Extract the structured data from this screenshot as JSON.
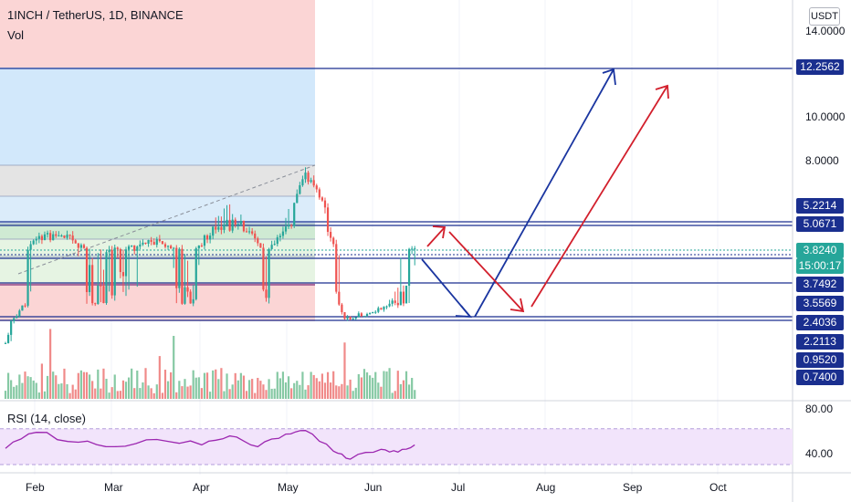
{
  "header": {
    "symbol": "1INCH / TetherUS, 1D, BINANCE",
    "volume_label": "Vol",
    "rsi_label": "RSI (14, close)",
    "currency_button": "USDT"
  },
  "price_ticks": [
    "14.0000",
    "10.0000",
    "8.0000"
  ],
  "price_tags_blue": [
    "12.2562",
    "5.2214",
    "5.0671",
    "3.7492",
    "3.5569",
    "2.4036",
    "2.2113",
    "0.9520",
    "0.7400"
  ],
  "current_price_tag": "3.8240",
  "countdown_tag": "15:00:17",
  "rsi_ticks": [
    "80.00",
    "40.00"
  ],
  "x_labels": [
    "Feb",
    "Mar",
    "Apr",
    "May",
    "Jun",
    "Jul",
    "Aug",
    "Sep",
    "Oct"
  ],
  "colors": {
    "bull": "#26a69a",
    "bear": "#ef5350",
    "level_line": "#1a2f8f",
    "arrow_blue": "#1a35a0",
    "arrow_red": "#d21f2c",
    "rsi_line": "#9c27b0",
    "rsi_band": "#f2e4fb"
  },
  "chart_data": [
    {
      "type": "candlestick",
      "title": "1INCH / TetherUS, 1D, BINANCE",
      "x_range": [
        "2021-01-25",
        "2021-10-18"
      ],
      "price_levels": [
        12.2562,
        5.2214,
        5.0671,
        3.7492,
        3.5569,
        2.4036,
        2.2113,
        0.952,
        0.74
      ],
      "current_price": 3.824,
      "close_path": [
        {
          "date": "2021-01-25",
          "close": 2.0
        },
        {
          "date": "2021-02-05",
          "close": 4.4
        },
        {
          "date": "2021-02-15",
          "close": 4.5
        },
        {
          "date": "2021-02-25",
          "close": 3.6
        },
        {
          "date": "2021-03-08",
          "close": 3.9
        },
        {
          "date": "2021-03-20",
          "close": 4.2
        },
        {
          "date": "2021-04-01",
          "close": 3.5
        },
        {
          "date": "2021-04-10",
          "close": 5.0
        },
        {
          "date": "2021-04-20",
          "close": 4.9
        },
        {
          "date": "2021-04-28",
          "close": 3.6
        },
        {
          "date": "2021-05-08",
          "close": 5.3
        },
        {
          "date": "2021-05-12",
          "close": 7.2
        },
        {
          "date": "2021-05-20",
          "close": 4.8
        },
        {
          "date": "2021-05-26",
          "close": 2.6
        },
        {
          "date": "2021-06-04",
          "close": 3.0
        },
        {
          "date": "2021-06-12",
          "close": 3.5
        },
        {
          "date": "2021-06-20",
          "close": 3.8
        }
      ]
    },
    {
      "type": "bar",
      "title": "Vol",
      "series": [
        {
          "name": "Vol",
          "values": []
        }
      ]
    },
    {
      "type": "line",
      "title": "RSI (14, close)",
      "ylim": [
        30,
        85
      ],
      "band": [
        30,
        70
      ],
      "ticks": [
        80,
        40
      ],
      "x": [
        "2021-01-25",
        "2021-02-05",
        "2021-02-20",
        "2021-03-05",
        "2021-03-20",
        "2021-04-05",
        "2021-04-15",
        "2021-04-25",
        "2021-05-05",
        "2021-05-12",
        "2021-05-22",
        "2021-05-28",
        "2021-06-08",
        "2021-06-14",
        "2021-06-20"
      ],
      "series": [
        {
          "values": [
            48,
            66,
            55,
            50,
            58,
            52,
            62,
            50,
            64,
            68,
            45,
            36,
            47,
            44,
            52
          ]
        }
      ]
    }
  ]
}
